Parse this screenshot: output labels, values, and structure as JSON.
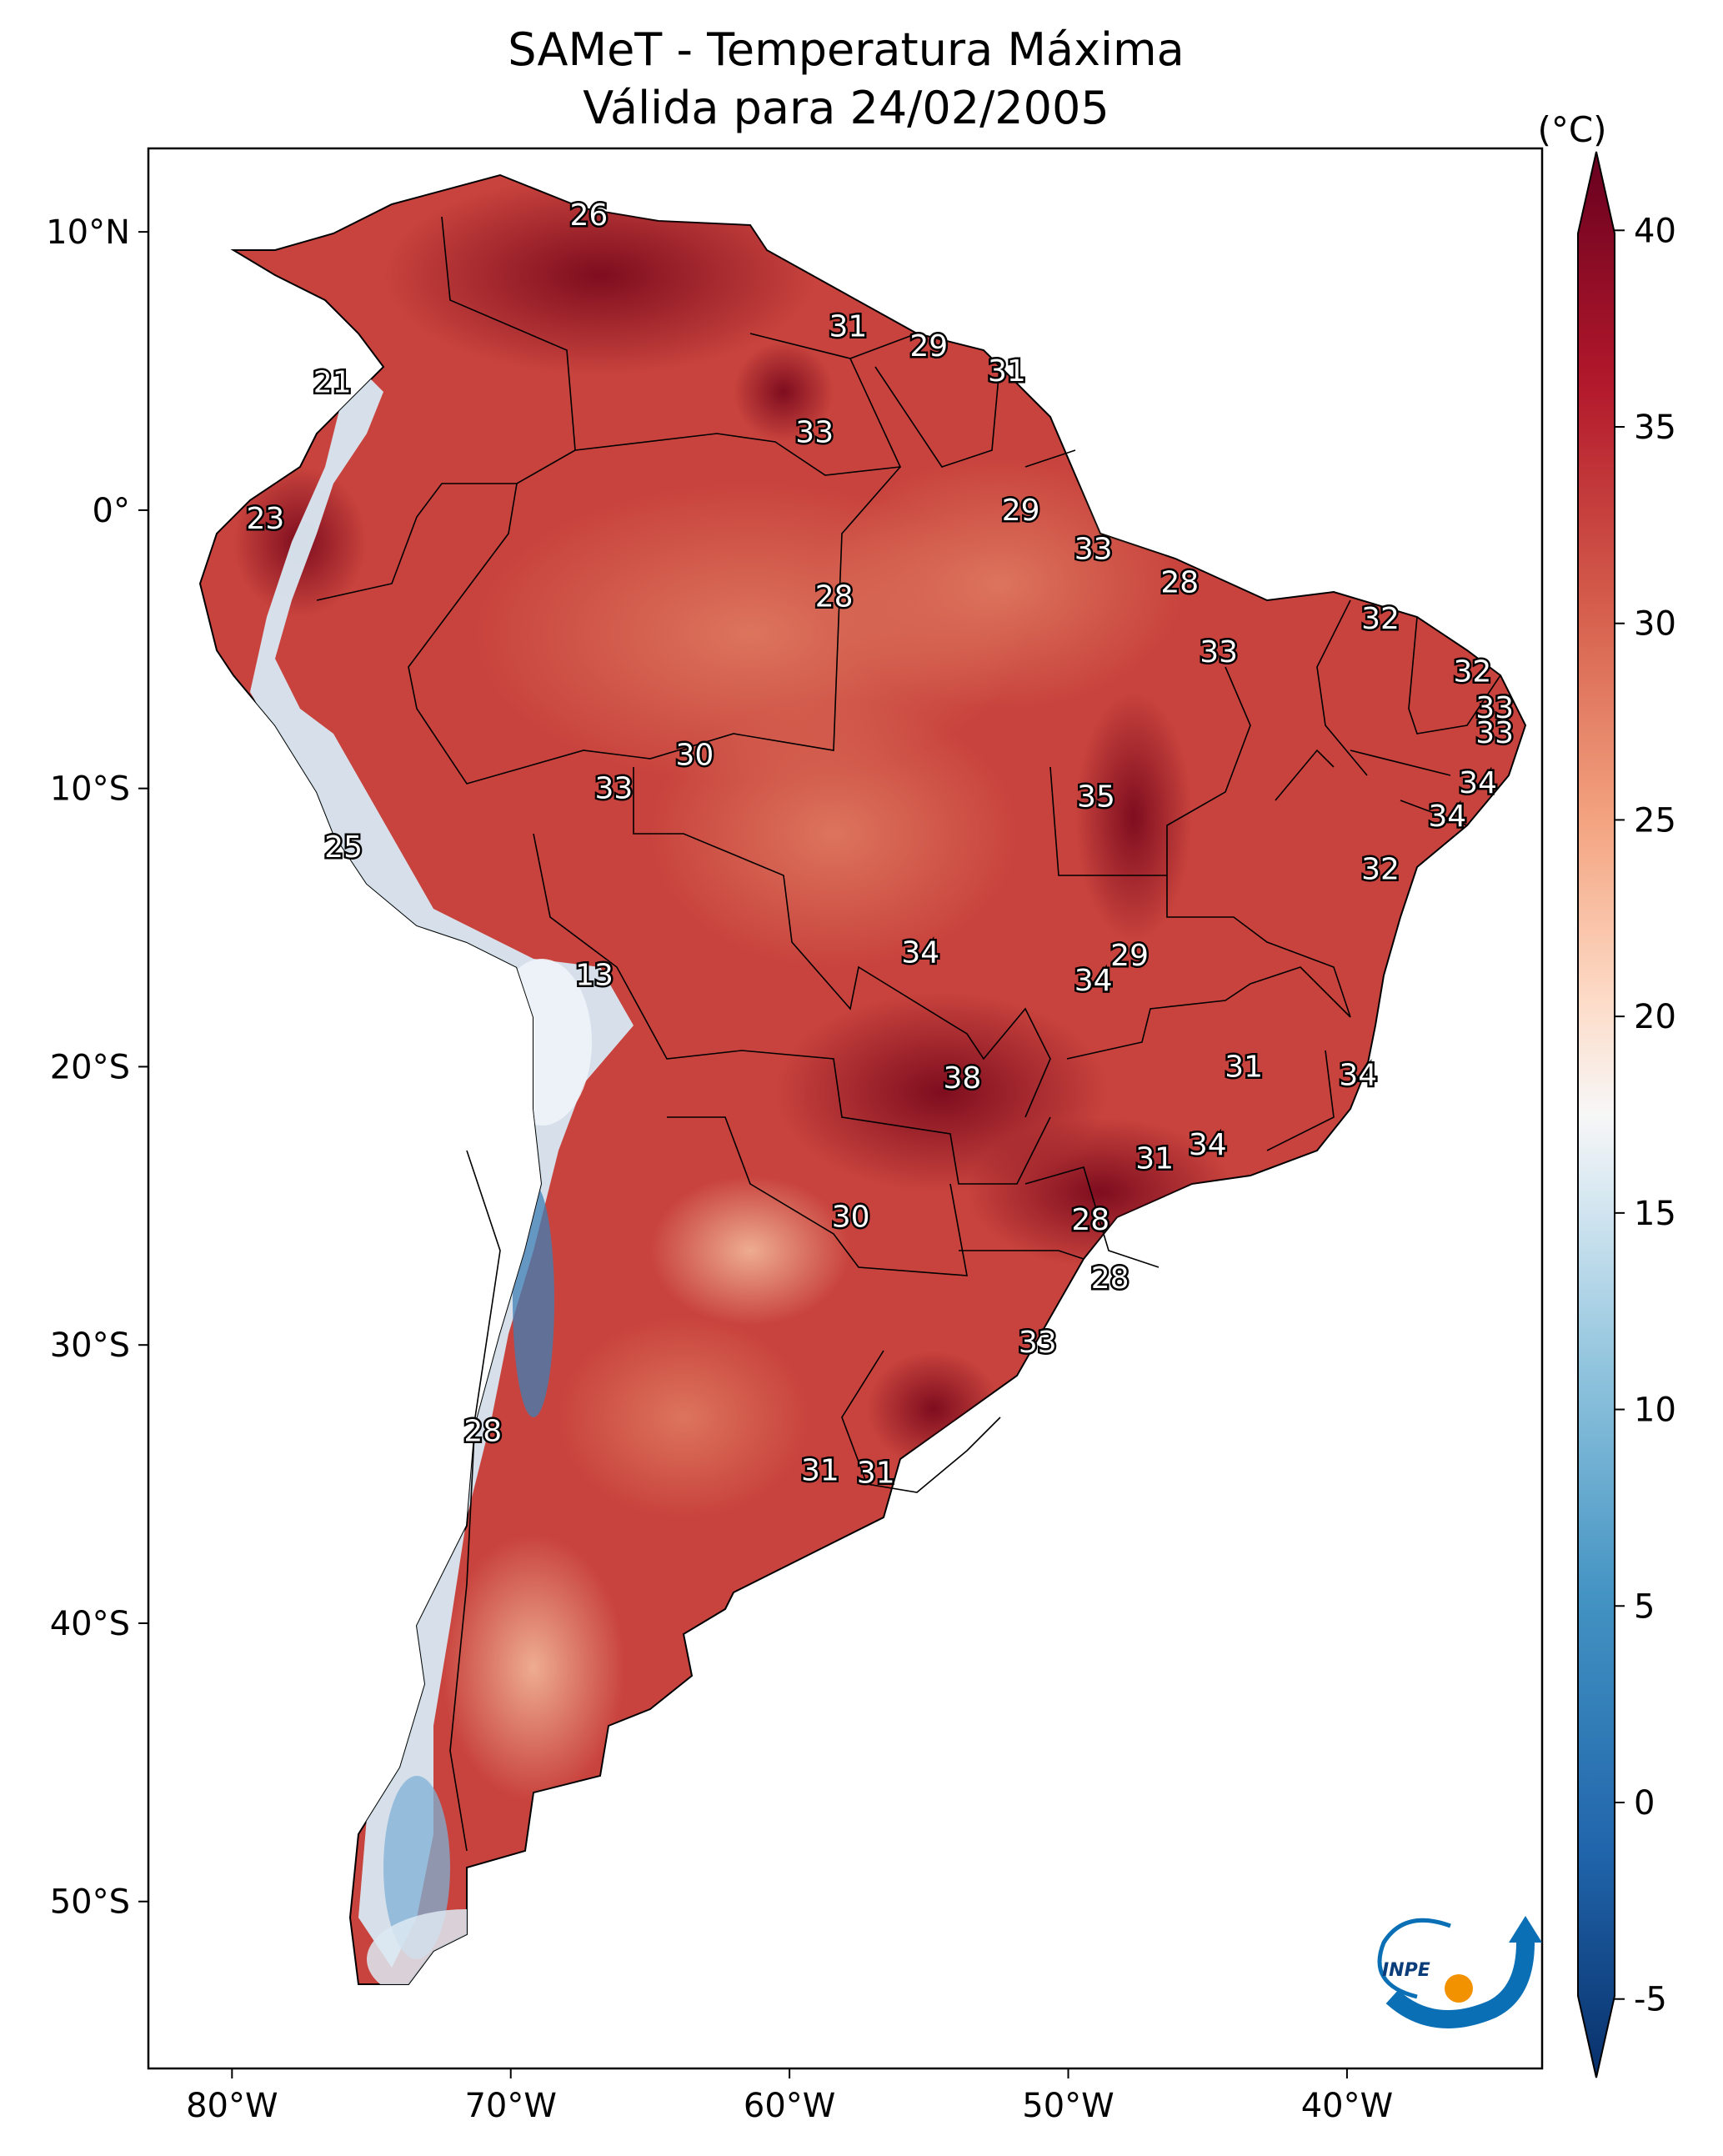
{
  "title": {
    "line1": "SAMeT - Temperatura Máxima",
    "line2": "Válida para 24/02/2005"
  },
  "map": {
    "lon_range": [
      -83,
      -33
    ],
    "lat_range": [
      -56,
      13
    ],
    "lat_ticks": [
      {
        "value": 10,
        "label": "10°N"
      },
      {
        "value": 0,
        "label": "0°"
      },
      {
        "value": -10,
        "label": "10°S"
      },
      {
        "value": -20,
        "label": "20°S"
      },
      {
        "value": -30,
        "label": "30°S"
      },
      {
        "value": -40,
        "label": "40°S"
      },
      {
        "value": -50,
        "label": "50°S"
      }
    ],
    "lon_ticks": [
      {
        "value": -80,
        "label": "80°W"
      },
      {
        "value": -70,
        "label": "70°W"
      },
      {
        "value": -60,
        "label": "60°W"
      },
      {
        "value": -50,
        "label": "50°W"
      },
      {
        "value": -40,
        "label": "40°W"
      }
    ],
    "colors": {
      "ocean": "#ffffff",
      "land_base": "#cc4640",
      "hot": "#8a0f22",
      "warm": "#e07a5f",
      "mild": "#f4c3a6",
      "cold": "#d6e8f3",
      "frame": "#000000"
    },
    "isotherm_labels": [
      {
        "lon": -67.2,
        "lat": 10.6,
        "text": "26"
      },
      {
        "lon": -57.9,
        "lat": 6.6,
        "text": "31"
      },
      {
        "lon": -55.0,
        "lat": 5.9,
        "text": "29"
      },
      {
        "lon": -52.2,
        "lat": 5.0,
        "text": "31"
      },
      {
        "lon": -76.4,
        "lat": 4.6,
        "text": "21"
      },
      {
        "lon": -59.1,
        "lat": 2.8,
        "text": "33"
      },
      {
        "lon": -78.8,
        "lat": -0.3,
        "text": "23"
      },
      {
        "lon": -51.7,
        "lat": 0.0,
        "text": "29"
      },
      {
        "lon": -49.1,
        "lat": -1.4,
        "text": "33"
      },
      {
        "lon": -58.4,
        "lat": -3.1,
        "text": "28"
      },
      {
        "lon": -46.0,
        "lat": -2.6,
        "text": "28"
      },
      {
        "lon": -38.8,
        "lat": -3.9,
        "text": "32"
      },
      {
        "lon": -44.6,
        "lat": -5.1,
        "text": "33"
      },
      {
        "lon": -35.5,
        "lat": -5.8,
        "text": "32"
      },
      {
        "lon": -34.7,
        "lat": -7.1,
        "text": "33"
      },
      {
        "lon": -34.7,
        "lat": -8.0,
        "text": "33"
      },
      {
        "lon": -35.3,
        "lat": -9.8,
        "text": "34"
      },
      {
        "lon": -63.4,
        "lat": -8.8,
        "text": "30"
      },
      {
        "lon": -66.3,
        "lat": -10.0,
        "text": "33"
      },
      {
        "lon": -49.0,
        "lat": -10.3,
        "text": "35"
      },
      {
        "lon": -36.4,
        "lat": -11.0,
        "text": "34"
      },
      {
        "lon": -76.0,
        "lat": -12.1,
        "text": "25"
      },
      {
        "lon": -38.8,
        "lat": -12.9,
        "text": "32"
      },
      {
        "lon": -55.3,
        "lat": -15.9,
        "text": "34"
      },
      {
        "lon": -47.8,
        "lat": -16.0,
        "text": "29"
      },
      {
        "lon": -49.1,
        "lat": -16.9,
        "text": "34"
      },
      {
        "lon": -67.0,
        "lat": -16.7,
        "text": "13"
      },
      {
        "lon": -43.7,
        "lat": -20.0,
        "text": "31"
      },
      {
        "lon": -39.6,
        "lat": -20.3,
        "text": "34"
      },
      {
        "lon": -53.8,
        "lat": -20.4,
        "text": "38"
      },
      {
        "lon": -45.0,
        "lat": -22.8,
        "text": "34"
      },
      {
        "lon": -46.9,
        "lat": -23.3,
        "text": "31"
      },
      {
        "lon": -57.8,
        "lat": -25.4,
        "text": "30"
      },
      {
        "lon": -49.2,
        "lat": -25.5,
        "text": "28"
      },
      {
        "lon": -48.5,
        "lat": -27.6,
        "text": "28"
      },
      {
        "lon": -51.1,
        "lat": -29.9,
        "text": "33"
      },
      {
        "lon": -71.0,
        "lat": -33.1,
        "text": "28"
      },
      {
        "lon": -58.9,
        "lat": -34.5,
        "text": "31"
      },
      {
        "lon": -56.9,
        "lat": -34.6,
        "text": "31"
      }
    ]
  },
  "colorbar": {
    "unit": "(°C)",
    "min": -7,
    "max": 42,
    "ticks": [
      {
        "value": 40,
        "label": "40"
      },
      {
        "value": 35,
        "label": "35"
      },
      {
        "value": 30,
        "label": "30"
      },
      {
        "value": 25,
        "label": "25"
      },
      {
        "value": 20,
        "label": "20"
      },
      {
        "value": 15,
        "label": "15"
      },
      {
        "value": 10,
        "label": "10"
      },
      {
        "value": 5,
        "label": "5"
      },
      {
        "value": 0,
        "label": "0"
      },
      {
        "value": -5,
        "label": "-5"
      }
    ]
  },
  "logo": {
    "text": "INPE",
    "color_blue": "#0a6fb5",
    "color_orange": "#f39200"
  }
}
